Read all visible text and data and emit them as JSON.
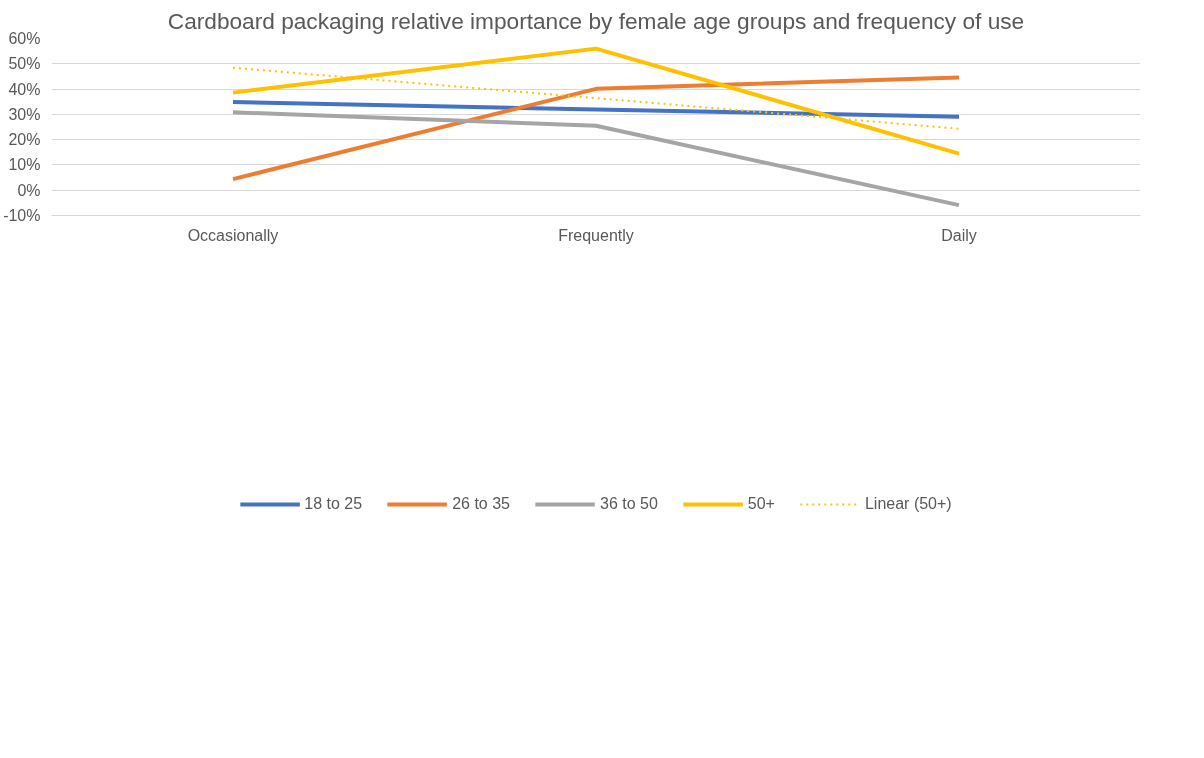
{
  "chart_data": {
    "type": "line",
    "title": "Cardboard packaging relative importance by female age groups and frequency of use",
    "categories": [
      "Occasionally",
      "Frequently",
      "Daily"
    ],
    "series": [
      {
        "name": "18 to 25",
        "color": "#4472c4",
        "values": [
          34.9,
          31.9,
          29.1
        ]
      },
      {
        "name": "26 to 35",
        "color": "#ed7d31",
        "values": [
          4.4,
          40.1,
          44.6
        ]
      },
      {
        "name": "36 to 50",
        "color": "#a5a5a5",
        "values": [
          30.8,
          25.5,
          -5.9
        ]
      },
      {
        "name": "50+",
        "color": "#ffc000",
        "values": [
          38.6,
          56.0,
          14.5
        ]
      },
      {
        "name": "Linear (50+)",
        "color": "#ffc000",
        "values": [
          48.4,
          36.4,
          24.3
        ],
        "line_style": "dotted"
      }
    ],
    "ylim": [
      -10,
      60
    ],
    "yticks": [
      {
        "value": -10,
        "label": "-10%"
      },
      {
        "value": 0,
        "label": "0%"
      },
      {
        "value": 10,
        "label": "10%"
      },
      {
        "value": 20,
        "label": "20%"
      },
      {
        "value": 30,
        "label": "30%"
      },
      {
        "value": 40,
        "label": "40%"
      },
      {
        "value": 50,
        "label": "50%"
      },
      {
        "value": 60,
        "label": "60%"
      }
    ],
    "grid": "y",
    "legend": "bottom",
    "marker": "none",
    "line_style": "solid"
  }
}
